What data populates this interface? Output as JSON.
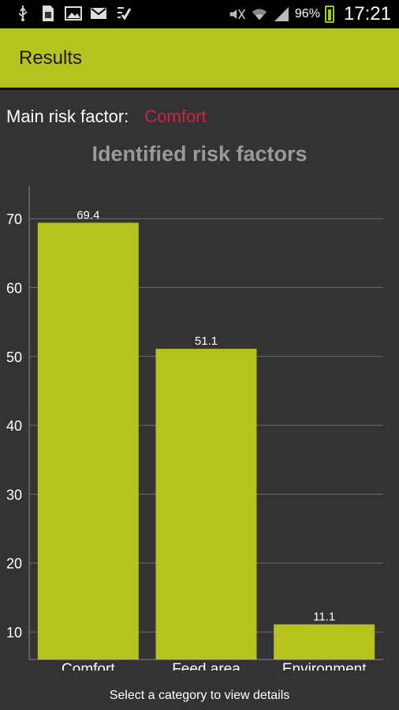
{
  "status_bar": {
    "icons_left": [
      "usb-icon",
      "sim-icon",
      "image-icon",
      "gmail-icon",
      "task-check-icon"
    ],
    "icons_right": [
      "mute-icon",
      "wifi-icon",
      "signal-icon"
    ],
    "battery_pct": "96%",
    "battery_level": 0.96,
    "time": "17:21"
  },
  "app_bar": {
    "title": "Results",
    "color": "#b6c21e"
  },
  "main_risk": {
    "label": "Main risk factor:",
    "value": "Comfort",
    "value_color": "#d0214a"
  },
  "chart_title": "Identified risk factors",
  "footer_hint": "Select a category to view details",
  "chart_data": {
    "type": "bar",
    "title": "Identified risk factors",
    "categories": [
      "Comfort",
      "Feed area",
      "Environment"
    ],
    "values": [
      69.4,
      51.1,
      11.1
    ],
    "value_labels": [
      "69.4",
      "51.1",
      "11.1"
    ],
    "yticks": [
      "10",
      "20",
      "30",
      "40",
      "50",
      "60",
      "70"
    ],
    "ylim": [
      6,
      71.5
    ],
    "grid": true,
    "bar_color": "#b6c21e",
    "xlabel": "",
    "ylabel": ""
  }
}
